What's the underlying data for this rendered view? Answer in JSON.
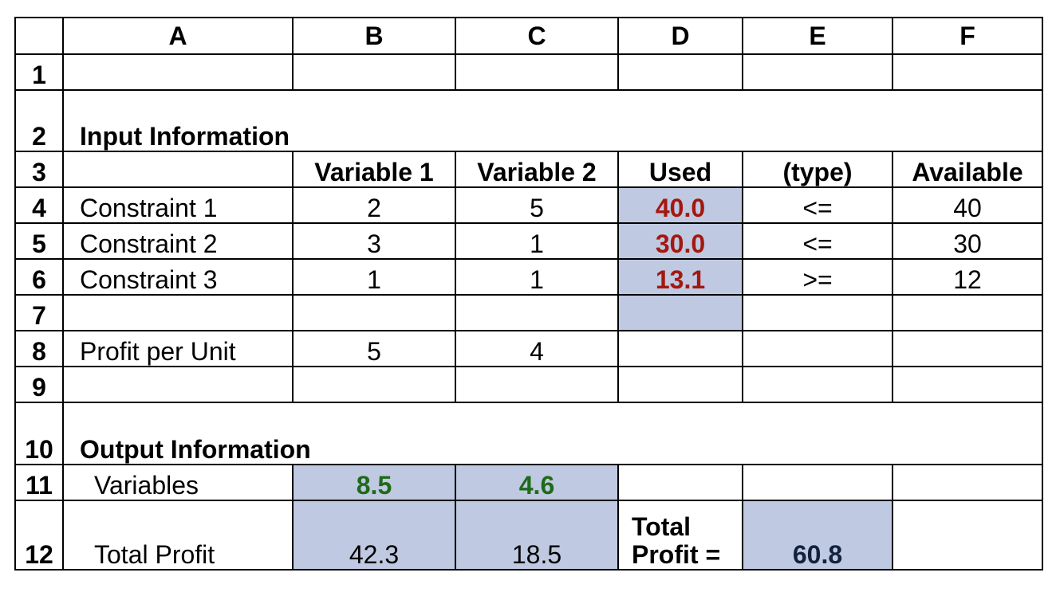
{
  "columns": [
    "A",
    "B",
    "C",
    "D",
    "E",
    "F"
  ],
  "rows": {
    "r1": {
      "num": "1"
    },
    "r2": {
      "num": "2",
      "a": "Input Information"
    },
    "r3": {
      "num": "3",
      "b": "Variable 1",
      "c": "Variable 2",
      "d": "Used",
      "e": "(type)",
      "f": "Available"
    },
    "r4": {
      "num": "4",
      "a": "Constraint 1",
      "b": "2",
      "c": "5",
      "d": "40.0",
      "e": "<=",
      "f": "40"
    },
    "r5": {
      "num": "5",
      "a": "Constraint 2",
      "b": "3",
      "c": "1",
      "d": "30.0",
      "e": "<=",
      "f": "30"
    },
    "r6": {
      "num": "6",
      "a": "Constraint 3",
      "b": "1",
      "c": "1",
      "d": "13.1",
      "e": ">=",
      "f": "12"
    },
    "r7": {
      "num": "7"
    },
    "r8": {
      "num": "8",
      "a": "Profit per Unit",
      "b": "5",
      "c": "4"
    },
    "r9": {
      "num": "9"
    },
    "r10": {
      "num": "10",
      "a": "Output Information"
    },
    "r11": {
      "num": "11",
      "a": "Variables",
      "b": "8.5",
      "c": "4.6"
    },
    "r12": {
      "num": "12",
      "a": "Total Profit",
      "b": "42.3",
      "c": "18.5",
      "d": "Total Profit =",
      "e": "60.8"
    }
  },
  "colors": {
    "shade": "#bfc9e1",
    "used_values": "#a3180f",
    "variable_values": "#1f6a1a",
    "total_value": "#14213d"
  }
}
